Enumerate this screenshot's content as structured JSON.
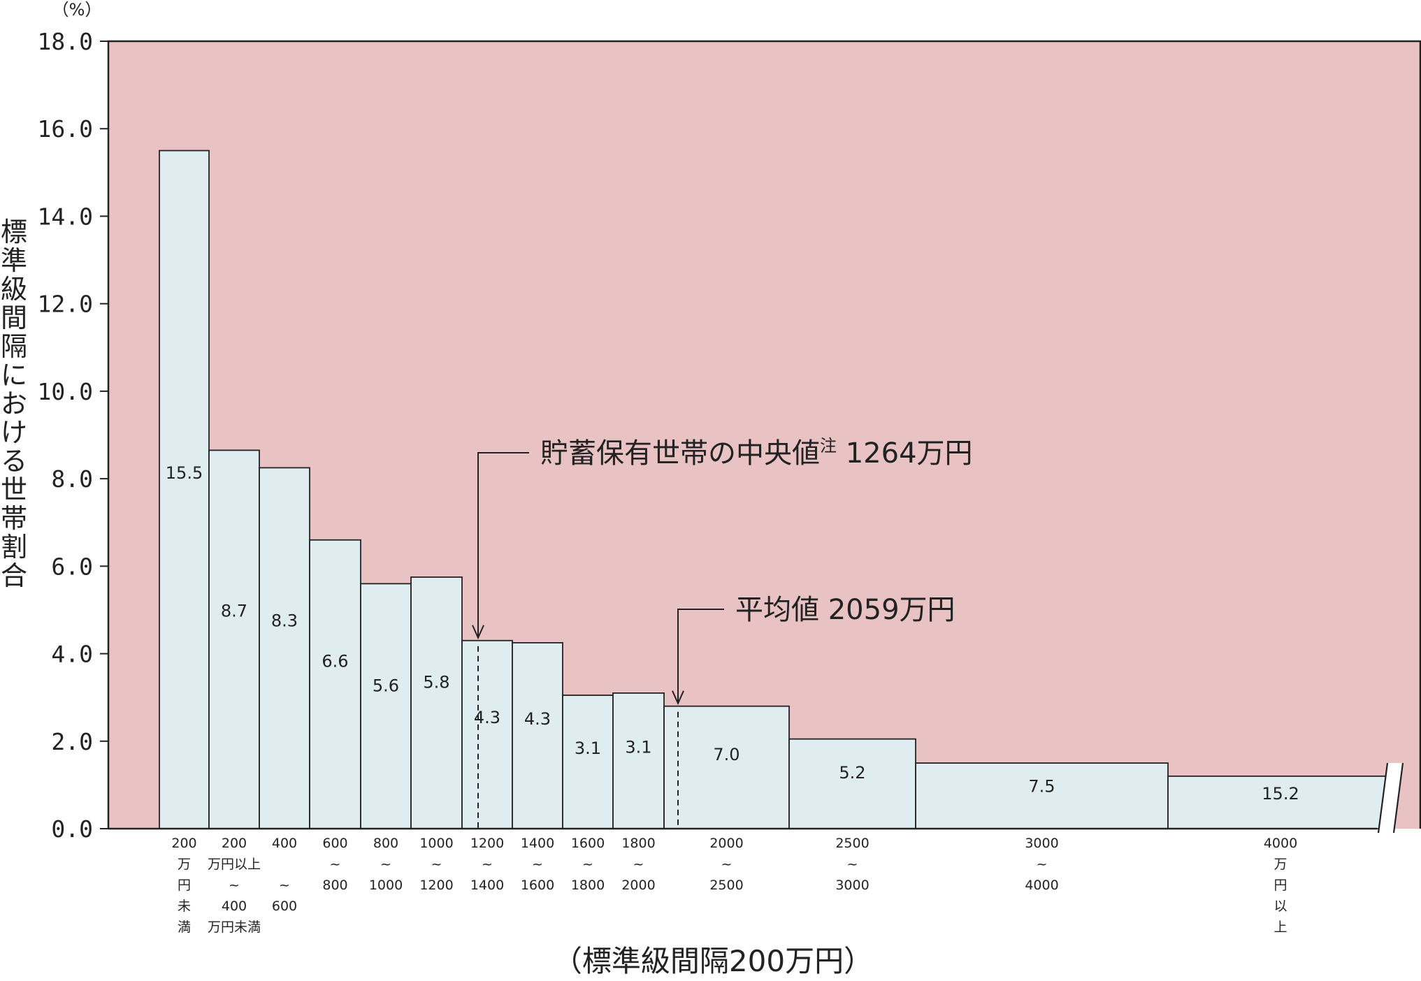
{
  "chart_data": {
    "type": "bar",
    "ylabel": "標準級間隔における世帯割合",
    "y_unit": "（%）",
    "xlabel": "（標準級間隔200万円）",
    "ylim": [
      0,
      18
    ],
    "yticks": [
      "0.0",
      "2.0",
      "4.0",
      "6.0",
      "8.0",
      "10.0",
      "12.0",
      "14.0",
      "16.0",
      "18.0"
    ],
    "grid": false,
    "colors": {
      "plot_background": "#e9c3c3",
      "bar_fill": "#e0edf0",
      "bar_stroke": "#222222"
    },
    "bars": [
      {
        "category": [
          "200",
          "万",
          "円",
          "未",
          "満"
        ],
        "value_label": "15.5",
        "height": 15.5
      },
      {
        "category": [
          "200",
          "万円以上",
          "~",
          "400",
          "万円未満"
        ],
        "value_label": "8.7",
        "height": 8.65
      },
      {
        "category": [
          "400",
          "",
          "~",
          "600"
        ],
        "value_label": "8.3",
        "height": 8.25
      },
      {
        "category": [
          "600",
          "~",
          "800"
        ],
        "value_label": "6.6",
        "height": 6.6
      },
      {
        "category": [
          "800",
          "~",
          "1000"
        ],
        "value_label": "5.6",
        "height": 5.6
      },
      {
        "category": [
          "1000",
          "~",
          "1200"
        ],
        "value_label": "5.8",
        "height": 5.75
      },
      {
        "category": [
          "1200",
          "~",
          "1400"
        ],
        "value_label": "4.3",
        "height": 4.3
      },
      {
        "category": [
          "1400",
          "~",
          "1600"
        ],
        "value_label": "4.3",
        "height": 4.25
      },
      {
        "category": [
          "1600",
          "~",
          "1800"
        ],
        "value_label": "3.1",
        "height": 3.05
      },
      {
        "category": [
          "1800",
          "~",
          "2000"
        ],
        "value_label": "3.1",
        "height": 3.1
      },
      {
        "category": [
          "2000",
          "~",
          "2500"
        ],
        "value_label": "7.0",
        "height": 2.8
      },
      {
        "category": [
          "2500",
          "~",
          "3000"
        ],
        "value_label": "5.2",
        "height": 2.05
      },
      {
        "category": [
          "3000",
          "~",
          "4000"
        ],
        "value_label": "7.5",
        "height": 1.5
      },
      {
        "category": [
          "4000",
          "万",
          "円",
          "以",
          "上"
        ],
        "value_label": "15.2",
        "height": 1.2
      }
    ],
    "annotations": [
      {
        "text": "貯蓄保有世帯の中央値",
        "superscript": "注",
        "value_text": "1264万円",
        "marker_value": 1264
      },
      {
        "text": "平均値",
        "superscript": "",
        "value_text": "2059万円",
        "marker_value": 2059
      }
    ]
  }
}
